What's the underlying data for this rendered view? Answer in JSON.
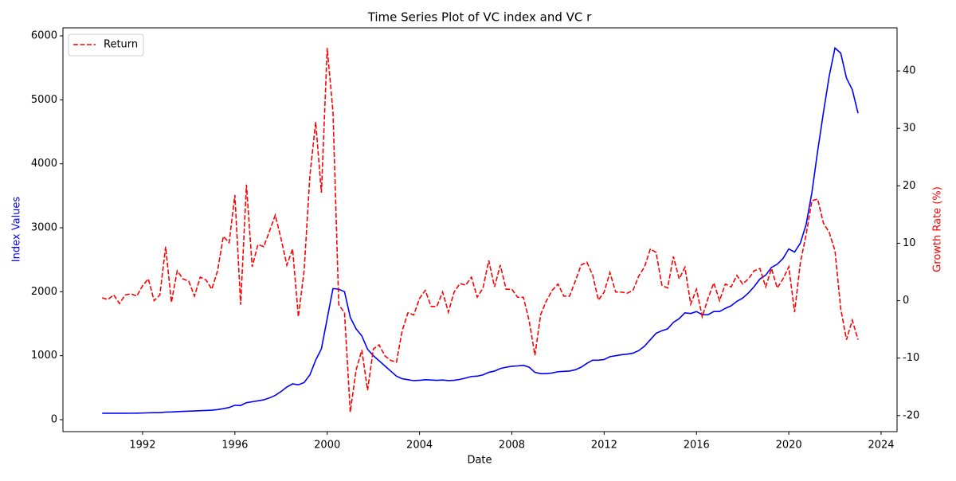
{
  "chart_data": {
    "type": "line",
    "title": "Time Series Plot of VC index and VC r",
    "xlabel": "Date",
    "ylabel": "Index Values",
    "y2label": "Growth Rate (%)",
    "x": [
      1990.25,
      1990.5,
      1990.75,
      1991,
      1991.25,
      1991.5,
      1991.75,
      1992,
      1992.25,
      1992.5,
      1992.75,
      1993,
      1993.25,
      1993.5,
      1993.75,
      1994,
      1994.25,
      1994.5,
      1994.75,
      1995,
      1995.25,
      1995.5,
      1995.75,
      1996,
      1996.25,
      1996.5,
      1996.75,
      1997,
      1997.25,
      1997.5,
      1997.75,
      1998,
      1998.25,
      1998.5,
      1998.75,
      1999,
      1999.25,
      1999.5,
      1999.75,
      2000,
      2000.25,
      2000.5,
      2000.75,
      2001,
      2001.25,
      2001.5,
      2001.75,
      2002,
      2002.25,
      2002.5,
      2002.75,
      2003,
      2003.25,
      2003.5,
      2003.75,
      2004,
      2004.25,
      2004.5,
      2004.75,
      2005,
      2005.25,
      2005.5,
      2005.75,
      2006,
      2006.25,
      2006.5,
      2006.75,
      2007,
      2007.25,
      2007.5,
      2007.75,
      2008,
      2008.25,
      2008.5,
      2008.75,
      2009,
      2009.25,
      2009.5,
      2009.75,
      2010,
      2010.25,
      2010.5,
      2010.75,
      2011,
      2011.25,
      2011.5,
      2011.75,
      2012,
      2012.25,
      2012.5,
      2012.75,
      2013,
      2013.25,
      2013.5,
      2013.75,
      2014,
      2014.25,
      2014.5,
      2014.75,
      2015,
      2015.25,
      2015.5,
      2015.75,
      2016,
      2016.25,
      2016.5,
      2016.75,
      2017,
      2017.25,
      2017.5,
      2017.75,
      2018,
      2018.25,
      2018.5,
      2018.75,
      2019,
      2019.25,
      2019.5,
      2019.75,
      2020,
      2020.25,
      2020.5,
      2020.75,
      2021,
      2021.25,
      2021.5,
      2021.75,
      2022,
      2022.25,
      2022.5,
      2022.75,
      2023
    ],
    "series": [
      {
        "color": "#0000ff",
        "linestyle": "solid",
        "values": [
          100,
          100,
          100,
          100,
          100,
          101,
          102,
          104,
          107,
          109,
          110,
          118,
          120,
          125,
          130,
          133,
          136,
          140,
          144,
          148,
          158,
          172,
          190,
          225,
          222,
          265,
          280,
          295,
          310,
          340,
          380,
          440,
          510,
          560,
          545,
          580,
          700,
          930,
          1110,
          1580,
          2050,
          2040,
          2000,
          1600,
          1420,
          1310,
          1100,
          1000,
          920,
          840,
          760,
          680,
          640,
          625,
          610,
          615,
          625,
          620,
          615,
          620,
          610,
          615,
          630,
          650,
          675,
          680,
          700,
          740,
          760,
          800,
          820,
          835,
          840,
          850,
          820,
          740,
          720,
          720,
          730,
          750,
          755,
          760,
          780,
          820,
          880,
          930,
          930,
          940,
          985,
          1000,
          1015,
          1025,
          1040,
          1080,
          1150,
          1250,
          1350,
          1390,
          1420,
          1520,
          1580,
          1670,
          1660,
          1690,
          1640,
          1640,
          1690,
          1690,
          1740,
          1780,
          1850,
          1900,
          1980,
          2080,
          2200,
          2260,
          2380,
          2430,
          2520,
          2670,
          2620,
          2760,
          3050,
          3550,
          4200,
          4800,
          5370,
          5810,
          5730,
          5340,
          5160,
          4790
        ]
      },
      {
        "name": "Return",
        "color": "#ff0000",
        "linestyle": "dashed",
        "axis": "y2",
        "values": [
          0.5,
          0.2,
          1.0,
          -0.5,
          1.0,
          1.2,
          0.8,
          2.6,
          3.8,
          0.0,
          1.0,
          9.4,
          -0.3,
          5.2,
          3.8,
          3.4,
          0.8,
          4.1,
          3.6,
          2.0,
          5.2,
          11.2,
          10.1,
          18.4,
          -0.7,
          20.2,
          5.9,
          9.8,
          9.4,
          12.1,
          14.9,
          10.8,
          6.2,
          9.0,
          -2.8,
          5.2,
          21.8,
          31.1,
          18.8,
          44.0,
          32.9,
          -0.7,
          -2.1,
          -19.4,
          -12.1,
          -8.6,
          -15.6,
          -8.4,
          -7.7,
          -9.6,
          -10.4,
          -10.7,
          -5.2,
          -2.1,
          -2.5,
          0.4,
          1.8,
          -1.0,
          -1.0,
          1.5,
          -2.0,
          1.5,
          3.0,
          2.7,
          4.1,
          0.6,
          2.2,
          7.0,
          2.4,
          6.2,
          2.0,
          2.0,
          0.6,
          0.6,
          -3.5,
          -9.5,
          -2.4,
          0,
          1.8,
          2.9,
          0.8,
          0.8,
          3.4,
          6.2,
          6.7,
          4.5,
          0.1,
          1.5,
          4.9,
          1.5,
          1.5,
          1.3,
          1.8,
          4.3,
          5.9,
          9.0,
          8.4,
          2.7,
          2.2,
          7.7,
          3.8,
          5.8,
          -0.6,
          2.0,
          -2.8,
          0.4,
          3.1,
          0,
          2.9,
          2.4,
          4.4,
          2.9,
          3.8,
          5.2,
          5.6,
          2.4,
          5.6,
          2.2,
          3.8,
          5.9,
          -2.0,
          6.6,
          11.5,
          17.4,
          17.7,
          13.5,
          11.9,
          8.7,
          -1.4,
          -6.8,
          -3.4,
          -6.8
        ]
      }
    ],
    "xlim": [
      1988.55,
      2024.69
    ],
    "xticks": [
      1992,
      1996,
      2000,
      2004,
      2008,
      2012,
      2016,
      2020,
      2024
    ],
    "ylim": [
      -187,
      6125
    ],
    "yticks": [
      0,
      1000,
      2000,
      3000,
      4000,
      5000,
      6000
    ],
    "ycolor": "#0000ff",
    "y2lim": [
      -22.8,
      47.5
    ],
    "y2ticks": [
      -20,
      -10,
      0,
      10,
      20,
      30,
      40
    ],
    "y2color": "#ff0000",
    "grid": false,
    "legend": "upper left"
  }
}
